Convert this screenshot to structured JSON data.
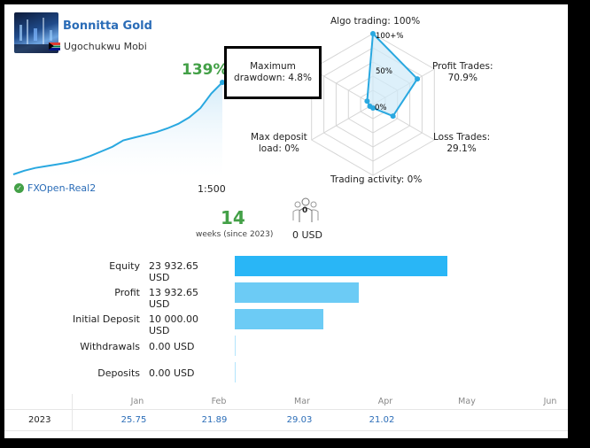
{
  "signal": {
    "name": "Bonnitta Gold",
    "author": "Ugochukwu Mobi",
    "growth": "139%",
    "broker": "FXOpen-Real2",
    "leverage": "1:500"
  },
  "growth_curve": [
    0,
    4,
    7,
    9,
    11,
    13,
    16,
    20,
    25,
    30,
    37,
    40,
    43,
    46,
    50,
    55,
    62,
    72,
    88,
    100
  ],
  "radar": {
    "algo_label": "Algo trading: 100%",
    "profit_label_line1": "Profit Trades:",
    "profit_label_line2": "70.9%",
    "loss_label_line1": "Loss Trades:",
    "loss_label_line2": "29.1%",
    "activity_label": "Trading activity: 0%",
    "deposit_label_line1": "Max deposit",
    "deposit_label_line2": "load: 0%",
    "drawdown_label_line1": "Maximum",
    "drawdown_label_line2": "drawdown: 4.8%",
    "tick_100": "100+%",
    "tick_50": "50%",
    "tick_0": "0%",
    "values": {
      "algo_trading": 100,
      "profit_trades": 70.9,
      "loss_trades": 29.1,
      "trading_activity": 0,
      "max_deposit_load": 0,
      "max_drawdown": 4.8
    }
  },
  "weeks": {
    "value": "14",
    "caption": "weeks (since 2023)"
  },
  "subscribers": {
    "count": "0",
    "amount": "0 USD"
  },
  "funds": [
    {
      "label": "Equity",
      "value": "23 932.65 USD",
      "amount": 23932.65,
      "color": "#29b6f6"
    },
    {
      "label": "Profit",
      "value": "13 932.65 USD",
      "amount": 13932.65,
      "color": "#6ccbf5"
    },
    {
      "label": "Initial Deposit",
      "value": "10 000.00 USD",
      "amount": 10000,
      "color": "#6ccbf5"
    },
    {
      "label": "Withdrawals",
      "value": "0.00 USD",
      "amount": 0,
      "color": "#b3e5fc"
    },
    {
      "label": "Deposits",
      "value": "0.00 USD",
      "amount": 0,
      "color": "#b3e5fc"
    }
  ],
  "monthly": {
    "months": [
      "Jan",
      "Feb",
      "Mar",
      "Apr",
      "May",
      "Jun"
    ],
    "year": "2023",
    "values": [
      "25.75",
      "21.89",
      "29.03",
      "21.02",
      "",
      ""
    ]
  },
  "colors": {
    "accent_blue": "#2a6cb7",
    "positive_green": "#43a047",
    "chart_line": "#29a8e0"
  }
}
